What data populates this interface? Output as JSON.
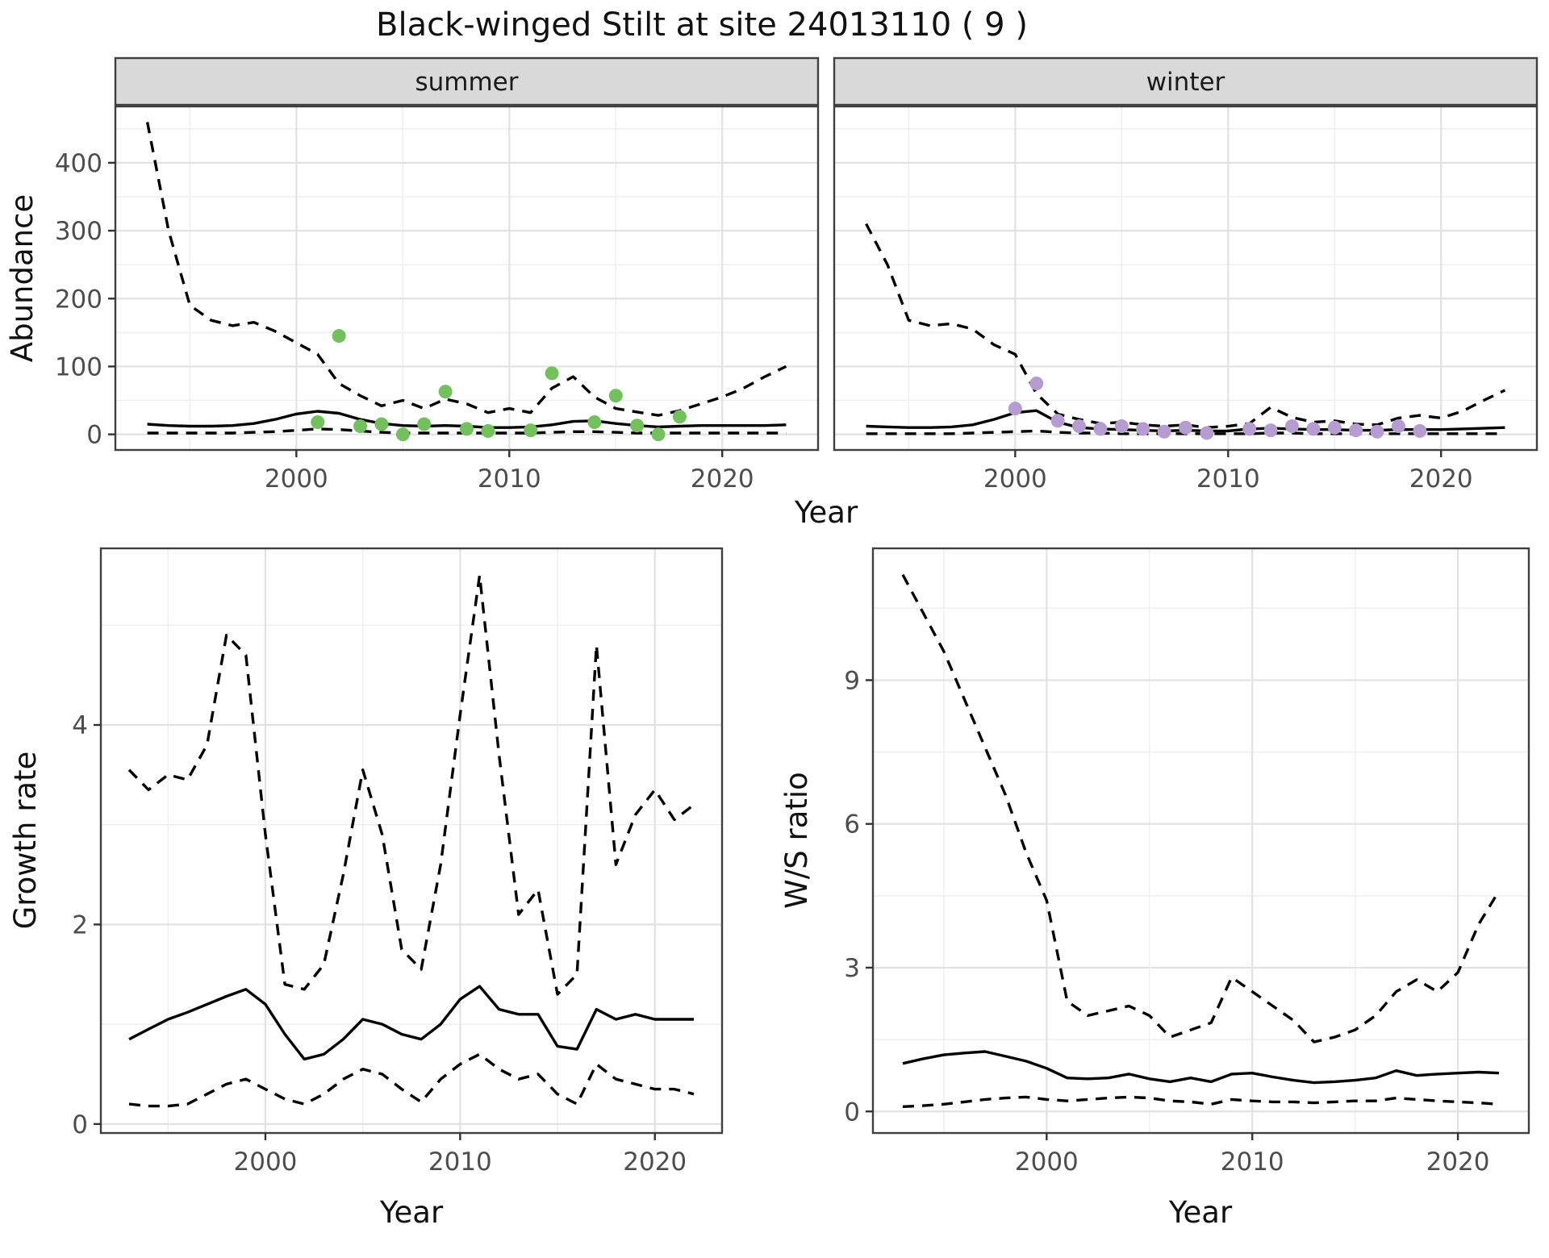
{
  "title": "Black-winged Stilt at site 24013110 ( 9 )",
  "colors": {
    "summer_point": "#74c05e",
    "winter_point": "#b59cd1",
    "line": "#000000",
    "strip_fill": "#d9d9d9",
    "panel_border": "#404040",
    "grid_major": "#e2e2e2",
    "grid_minor": "#efefef",
    "tick_text": "#4d4d4d",
    "background": "#ffffff"
  },
  "chart_data": [
    {
      "id": "abundance",
      "type": "line",
      "ylabel": "Abundance",
      "xlabel": "Year",
      "legend_position": "none",
      "grid": true,
      "xticks": [
        2000,
        2010,
        2020
      ],
      "yticks": [
        0,
        100,
        200,
        300,
        400
      ],
      "xlim": [
        1991.5,
        2024.5
      ],
      "ylim": [
        -23,
        483
      ],
      "x": [
        1993,
        1994,
        1995,
        1996,
        1997,
        1998,
        1999,
        2000,
        2001,
        2002,
        2003,
        2004,
        2005,
        2006,
        2007,
        2008,
        2009,
        2010,
        2011,
        2012,
        2013,
        2014,
        2015,
        2016,
        2017,
        2018,
        2019,
        2020,
        2021,
        2022,
        2023
      ],
      "facets": [
        {
          "name": "summer",
          "series": [
            {
              "name": "upper-ci",
              "style": "dashed",
              "values": [
                460,
                300,
                190,
                168,
                160,
                165,
                152,
                135,
                118,
                75,
                57,
                42,
                50,
                38,
                52,
                45,
                32,
                38,
                32,
                68,
                85,
                55,
                38,
                33,
                28,
                35,
                45,
                55,
                68,
                85,
                100
              ]
            },
            {
              "name": "median",
              "style": "solid",
              "values": [
                15,
                13,
                12,
                12,
                13,
                16,
                22,
                30,
                34,
                31,
                22,
                16,
                13,
                12,
                13,
                12,
                10,
                10,
                11,
                14,
                19,
                20,
                16,
                13,
                11,
                12,
                13,
                13,
                13,
                13,
                14
              ]
            },
            {
              "name": "lower-ci",
              "style": "dashed",
              "values": [
                2,
                2,
                2,
                2,
                2,
                3,
                4,
                6,
                8,
                7,
                5,
                3,
                2,
                2,
                2,
                2,
                2,
                2,
                2,
                3,
                4,
                4,
                3,
                2,
                2,
                2,
                2,
                2,
                2,
                2,
                2
              ]
            }
          ],
          "points": {
            "name": "observed-counts-summer",
            "color": "#74c05e",
            "x": [
              2001,
              2002,
              2003,
              2004,
              2005,
              2006,
              2007,
              2008,
              2009,
              2011,
              2012,
              2014,
              2015,
              2016,
              2017,
              2018
            ],
            "y": [
              18,
              145,
              12,
              15,
              0,
              15,
              63,
              8,
              5,
              6,
              90,
              18,
              57,
              13,
              0,
              26
            ]
          }
        },
        {
          "name": "winter",
          "series": [
            {
              "name": "upper-ci",
              "style": "dashed",
              "values": [
                310,
                250,
                168,
                160,
                163,
                155,
                132,
                118,
                60,
                30,
                22,
                16,
                18,
                14,
                12,
                14,
                10,
                12,
                16,
                40,
                25,
                18,
                20,
                15,
                14,
                24,
                28,
                24,
                34,
                50,
                65
              ]
            },
            {
              "name": "median",
              "style": "solid",
              "values": [
                12,
                11,
                10,
                10,
                11,
                14,
                22,
                32,
                35,
                18,
                10,
                8,
                7,
                6,
                5,
                6,
                5,
                5,
                8,
                9,
                8,
                7,
                7,
                6,
                6,
                7,
                7,
                7,
                8,
                9,
                10
              ]
            },
            {
              "name": "lower-ci",
              "style": "dashed",
              "values": [
                1,
                1,
                1,
                1,
                1,
                2,
                3,
                4,
                5,
                3,
                2,
                2,
                1,
                1,
                1,
                1,
                1,
                1,
                1,
                2,
                2,
                1,
                1,
                1,
                1,
                1,
                1,
                1,
                1,
                1,
                1
              ]
            }
          ],
          "points": {
            "name": "observed-counts-winter",
            "color": "#b59cd1",
            "x": [
              2000,
              2001,
              2002,
              2003,
              2004,
              2005,
              2006,
              2007,
              2008,
              2009,
              2011,
              2012,
              2013,
              2014,
              2015,
              2016,
              2017,
              2018,
              2019
            ],
            "y": [
              38,
              75,
              20,
              12,
              8,
              12,
              8,
              4,
              10,
              2,
              8,
              6,
              12,
              8,
              10,
              6,
              4,
              12,
              5
            ]
          }
        }
      ]
    },
    {
      "id": "growth-rate",
      "type": "line",
      "ylabel": "Growth rate",
      "xlabel": "Year",
      "grid": true,
      "xticks": [
        2000,
        2010,
        2020
      ],
      "yticks": [
        0,
        2,
        4
      ],
      "xlim": [
        1991.55,
        2023.45
      ],
      "ylim": [
        -0.09,
        5.77
      ],
      "x": [
        1993,
        1994,
        1995,
        1996,
        1997,
        1998,
        1999,
        2000,
        2001,
        2002,
        2003,
        2004,
        2005,
        2006,
        2007,
        2008,
        2009,
        2010,
        2011,
        2012,
        2013,
        2014,
        2015,
        2016,
        2017,
        2018,
        2019,
        2020,
        2021,
        2022
      ],
      "series": [
        {
          "name": "upper-ci",
          "style": "dashed",
          "values": [
            3.55,
            3.35,
            3.5,
            3.45,
            3.8,
            4.9,
            4.7,
            2.9,
            1.4,
            1.35,
            1.6,
            2.5,
            3.55,
            2.9,
            1.75,
            1.55,
            2.6,
            4.1,
            5.5,
            3.7,
            2.1,
            2.35,
            1.3,
            1.5,
            4.8,
            2.6,
            3.1,
            3.35,
            3.05,
            3.2
          ]
        },
        {
          "name": "median",
          "style": "solid",
          "values": [
            0.85,
            0.95,
            1.05,
            1.12,
            1.2,
            1.28,
            1.35,
            1.2,
            0.9,
            0.65,
            0.7,
            0.85,
            1.05,
            1.0,
            0.9,
            0.85,
            1.0,
            1.25,
            1.38,
            1.15,
            1.1,
            1.1,
            0.78,
            0.75,
            1.15,
            1.05,
            1.1,
            1.05,
            1.05,
            1.05
          ]
        },
        {
          "name": "lower-ci",
          "style": "dashed",
          "values": [
            0.2,
            0.18,
            0.18,
            0.2,
            0.3,
            0.4,
            0.45,
            0.35,
            0.25,
            0.2,
            0.3,
            0.45,
            0.55,
            0.5,
            0.35,
            0.22,
            0.45,
            0.6,
            0.7,
            0.55,
            0.45,
            0.5,
            0.3,
            0.2,
            0.6,
            0.45,
            0.4,
            0.35,
            0.35,
            0.3
          ]
        }
      ]
    },
    {
      "id": "ws-ratio",
      "type": "line",
      "ylabel": "W/S ratio",
      "xlabel": "Year",
      "grid": true,
      "xticks": [
        2000,
        2010,
        2020
      ],
      "yticks": [
        0,
        3,
        6,
        9
      ],
      "xlim": [
        1991.55,
        2023.45
      ],
      "ylim": [
        -0.45,
        11.75
      ],
      "x": [
        1993,
        1994,
        1995,
        1996,
        1997,
        1998,
        1999,
        2000,
        2001,
        2002,
        2003,
        2004,
        2005,
        2006,
        2007,
        2008,
        2009,
        2010,
        2011,
        2012,
        2013,
        2014,
        2015,
        2016,
        2017,
        2018,
        2019,
        2020,
        2021,
        2022
      ],
      "series": [
        {
          "name": "upper-ci",
          "style": "dashed",
          "values": [
            11.2,
            10.4,
            9.6,
            8.6,
            7.6,
            6.6,
            5.4,
            4.4,
            2.3,
            2.0,
            2.1,
            2.2,
            2.0,
            1.55,
            1.7,
            1.85,
            2.8,
            2.5,
            2.2,
            1.9,
            1.45,
            1.55,
            1.7,
            2.0,
            2.5,
            2.75,
            2.5,
            2.9,
            3.9,
            4.6
          ]
        },
        {
          "name": "median",
          "style": "solid",
          "values": [
            1.0,
            1.1,
            1.18,
            1.22,
            1.25,
            1.15,
            1.05,
            0.9,
            0.7,
            0.68,
            0.7,
            0.78,
            0.68,
            0.62,
            0.7,
            0.62,
            0.78,
            0.8,
            0.72,
            0.65,
            0.6,
            0.62,
            0.65,
            0.7,
            0.85,
            0.75,
            0.78,
            0.8,
            0.82,
            0.8
          ]
        },
        {
          "name": "lower-ci",
          "style": "dashed",
          "values": [
            0.1,
            0.12,
            0.15,
            0.2,
            0.25,
            0.28,
            0.3,
            0.25,
            0.22,
            0.25,
            0.28,
            0.3,
            0.28,
            0.22,
            0.2,
            0.15,
            0.25,
            0.22,
            0.2,
            0.2,
            0.18,
            0.2,
            0.22,
            0.22,
            0.28,
            0.25,
            0.22,
            0.2,
            0.18,
            0.15
          ]
        }
      ]
    }
  ]
}
